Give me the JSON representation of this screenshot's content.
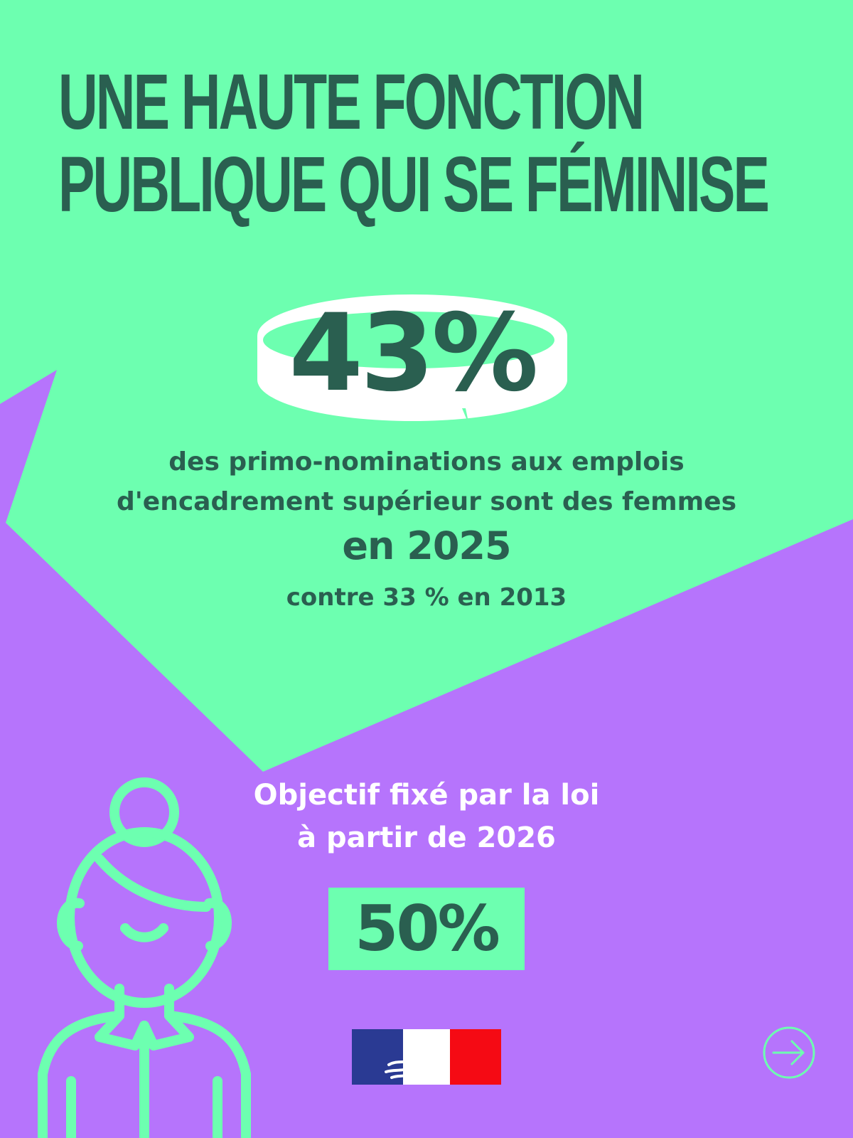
{
  "colors": {
    "mint": "#6dffb0",
    "purple": "#b674fc",
    "dark_green": "#2a5f50",
    "white": "#ffffff"
  },
  "header": {
    "title_line1": "UNE HAUTE FONCTION",
    "title_line2": "PUBLIQUE QUI SE FÉMINISE"
  },
  "stat": {
    "value": "43%",
    "desc_line1": "des primo-nominations aux emplois",
    "desc_line2": "d'encadrement supérieur sont des femmes",
    "year": "en 2025",
    "comparison": "contre 33 % en 2013"
  },
  "goal": {
    "line1": "Objectif fixé par la loi",
    "line2": "à partir de 2026",
    "value": "50%"
  },
  "icons": {
    "woman": "woman-outline-icon",
    "flag": "marianne-logo",
    "next": "arrow-right-circle-icon"
  }
}
